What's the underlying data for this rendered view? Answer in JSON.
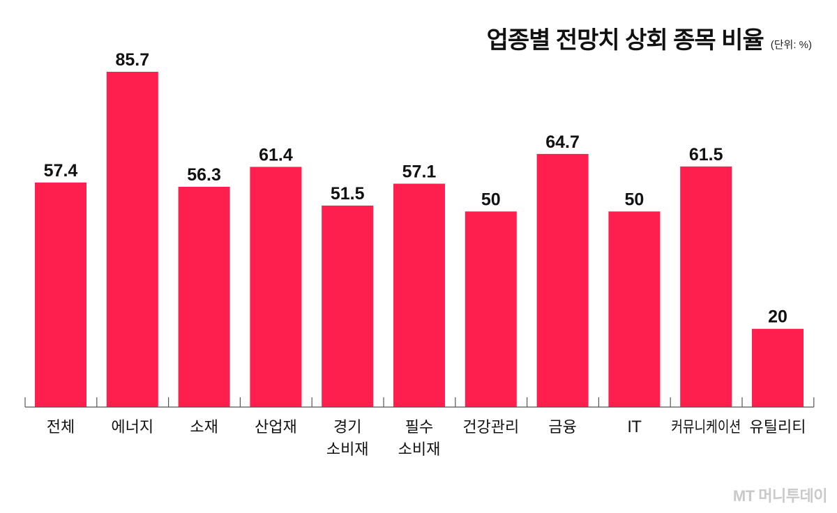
{
  "chart_data": {
    "type": "bar",
    "title": "업종별 전망치 상회 종목 비율",
    "unit": "(단위: %)",
    "categories": [
      [
        "전체"
      ],
      [
        "에너지"
      ],
      [
        "소재"
      ],
      [
        "산업재"
      ],
      [
        "경기",
        "소비재"
      ],
      [
        "필수",
        "소비재"
      ],
      [
        "건강관리"
      ],
      [
        "금융"
      ],
      [
        "IT"
      ],
      [
        "커뮤니케이션"
      ],
      [
        "유틸리티"
      ]
    ],
    "values": [
      57.4,
      85.7,
      56.3,
      61.4,
      51.5,
      57.1,
      50,
      64.7,
      50,
      61.5,
      20
    ],
    "value_labels": [
      "57.4",
      "85.7",
      "56.3",
      "61.4",
      "51.5",
      "57.1",
      "50",
      "64.7",
      "50",
      "61.5",
      "20"
    ],
    "bar_color": "#ff1f4f",
    "ylim": [
      0,
      100
    ],
    "grid": false,
    "legend": "none"
  },
  "watermark": "MT 머니투데이"
}
